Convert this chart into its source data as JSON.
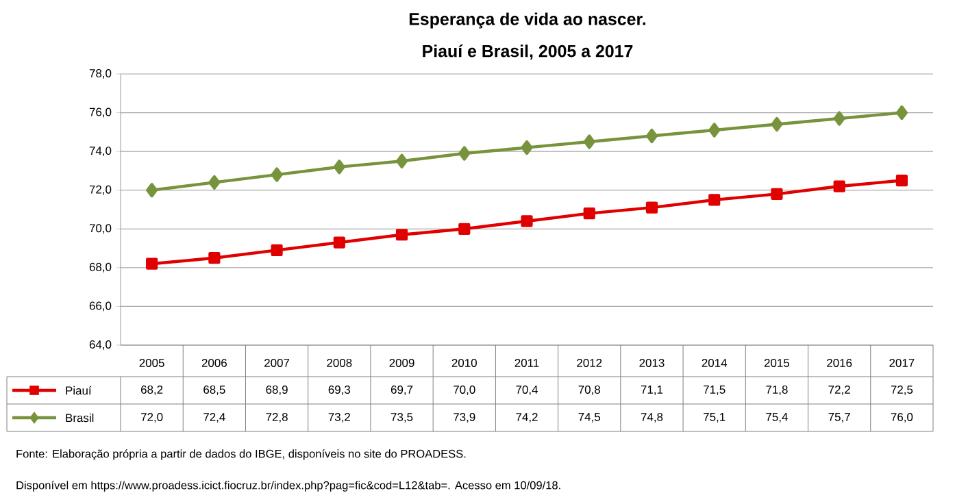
{
  "chart_data": {
    "type": "line",
    "title": "Esperança de vida ao nascer.",
    "subtitle": "Piauí e Brasil, 2005 a 2017",
    "categories": [
      "2005",
      "2006",
      "2007",
      "2008",
      "2009",
      "2010",
      "2011",
      "2012",
      "2013",
      "2014",
      "2015",
      "2016",
      "2017"
    ],
    "series": [
      {
        "name": "Piauí",
        "color": "#e00000",
        "marker": "square",
        "values": [
          68.2,
          68.5,
          68.9,
          69.3,
          69.7,
          70.0,
          70.4,
          70.8,
          71.1,
          71.5,
          71.8,
          72.2,
          72.5
        ],
        "value_labels": [
          "68,2",
          "68,5",
          "68,9",
          "69,3",
          "69,7",
          "70,0",
          "70,4",
          "70,8",
          "71,1",
          "71,5",
          "71,8",
          "72,2",
          "72,5"
        ]
      },
      {
        "name": "Brasil",
        "color": "#77933c",
        "marker": "diamond",
        "values": [
          72.0,
          72.4,
          72.8,
          73.2,
          73.5,
          73.9,
          74.2,
          74.5,
          74.8,
          75.1,
          75.4,
          75.7,
          76.0
        ],
        "value_labels": [
          "72,0",
          "72,4",
          "72,8",
          "73,2",
          "73,5",
          "73,9",
          "74,2",
          "74,5",
          "74,8",
          "75,1",
          "75,4",
          "75,7",
          "76,0"
        ]
      }
    ],
    "ylim": [
      64,
      78
    ],
    "yticks": [
      {
        "value": 64,
        "label": "64,0"
      },
      {
        "value": 66,
        "label": "66,0"
      },
      {
        "value": 68,
        "label": "68,0"
      },
      {
        "value": 70,
        "label": "70,0"
      },
      {
        "value": 72,
        "label": "72,0"
      },
      {
        "value": 74,
        "label": "74,0"
      },
      {
        "value": 76,
        "label": "76,0"
      },
      {
        "value": 78,
        "label": "78,0"
      }
    ],
    "grid": "y",
    "legend": "bottom left",
    "annotations": [
      "Fonte:  Elaboração  própria a partir de dados  do IBGE, disponíveis no site do  PROADESS.",
      "Disponível em https://www.proadess.icict.fiocruz.br/index.php?pag=fic&cod=L12&tab=. Acesso em  10/09/18."
    ]
  }
}
